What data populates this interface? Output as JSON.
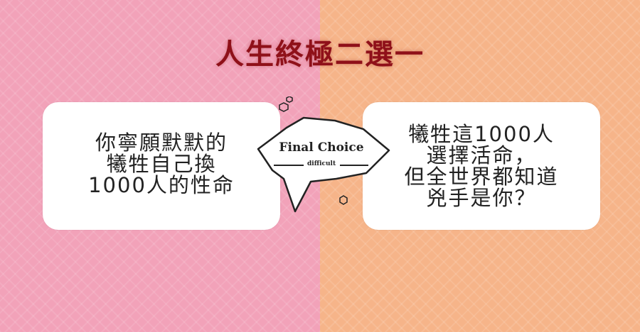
{
  "title": "人生終極二選一",
  "left_option": {
    "lines": [
      "你寧願默默的",
      "犧牲自己換",
      "1000人的性命"
    ]
  },
  "right_option": {
    "lines": [
      "犧牲這1000人",
      "選擇活命，",
      "但全世界都知道",
      "兇手是你？"
    ]
  },
  "bubble": {
    "title": "Final Choice",
    "subtitle": "difficult"
  },
  "colors": {
    "left_bg": "#f2a2b9",
    "right_bg": "#f6b489",
    "title": "#8f1019",
    "card": "#ffffff"
  }
}
